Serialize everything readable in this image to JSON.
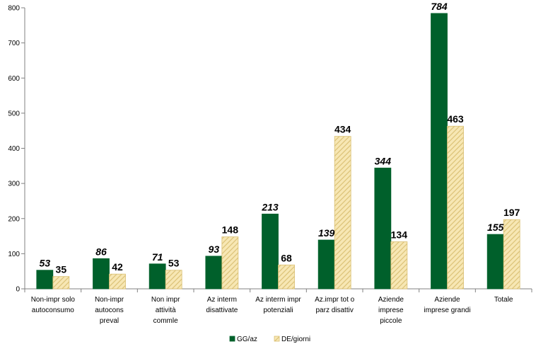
{
  "chart_data": {
    "type": "bar",
    "categories": [
      [
        "Non-impr solo",
        "autoconsumo"
      ],
      [
        "Non-impr",
        "autocons",
        "preval"
      ],
      [
        "Non impr",
        "attività",
        "commle"
      ],
      [
        "Az interm",
        "disattivate"
      ],
      [
        "Az interm impr",
        "potenziali"
      ],
      [
        "Az.impr tot o",
        "parz disattiv"
      ],
      [
        "Aziende",
        "imprese",
        "piccole"
      ],
      [
        "Aziende",
        "imprese grandi"
      ],
      [
        "Totale"
      ]
    ],
    "series": [
      {
        "name": "GG/az",
        "values": [
          53,
          86,
          71,
          93,
          213,
          139,
          344,
          784,
          155
        ],
        "labels": [
          "53",
          "86",
          "71",
          "93",
          "213",
          "139",
          "344",
          "784",
          "155"
        ],
        "color": "#00602b",
        "pattern": "solid",
        "label_style": "italic"
      },
      {
        "name": "DE/giorni",
        "values": [
          35,
          42,
          53,
          148,
          68,
          434,
          134,
          463,
          197
        ],
        "labels": [
          "35",
          "42",
          "53",
          "148",
          "68",
          "434",
          "134",
          "463",
          "197"
        ],
        "color": "#f7e7b4",
        "stripe_color": "#d9bf72",
        "pattern": "diagonal-hatch",
        "label_style": "normal"
      }
    ],
    "title": "",
    "xlabel": "",
    "ylabel": "",
    "ylim": [
      0,
      800
    ],
    "yticks": [
      "0",
      "100",
      "200",
      "300",
      "400",
      "500",
      "600",
      "700",
      "800"
    ],
    "grid": false,
    "legend": "bottom-center"
  }
}
